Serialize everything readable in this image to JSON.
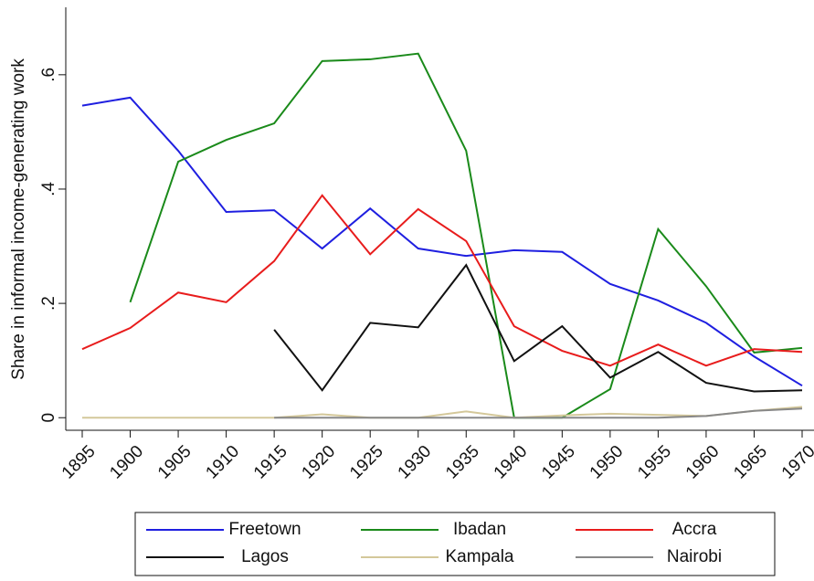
{
  "chart_data": {
    "type": "line",
    "y_label": "Share in informal income-generating work",
    "x": [
      1895,
      1900,
      1905,
      1910,
      1915,
      1920,
      1925,
      1930,
      1935,
      1940,
      1945,
      1950,
      1955,
      1960,
      1965,
      1970
    ],
    "xlim": [
      1895,
      1970
    ],
    "xticks": [
      1895,
      1900,
      1905,
      1910,
      1915,
      1920,
      1925,
      1930,
      1935,
      1940,
      1945,
      1950,
      1955,
      1960,
      1965,
      1970
    ],
    "ylim": [
      -0.022,
      0.718
    ],
    "yticks": [
      {
        "value": 0,
        "label": "0"
      },
      {
        "value": 0.2,
        "label": ".2"
      },
      {
        "value": 0.4,
        "label": ".4"
      },
      {
        "value": 0.6,
        "label": ".6"
      }
    ],
    "grid": false,
    "legend": "bottom",
    "series": [
      {
        "name": "Freetown",
        "color": "#1f1fe0",
        "values": [
          0.546,
          0.56,
          0.467,
          0.36,
          0.363,
          0.296,
          0.366,
          0.296,
          0.283,
          0.293,
          0.29,
          0.234,
          0.205,
          0.166,
          0.107,
          0.056
        ]
      },
      {
        "name": "Ibadan",
        "color": "#1a8a1a",
        "values": [
          null,
          0.202,
          0.448,
          0.486,
          0.515,
          0.624,
          0.627,
          0.637,
          0.467,
          0,
          0,
          0.05,
          0.33,
          0.23,
          0.114,
          0.122
        ]
      },
      {
        "name": "Accra",
        "color": "#e81c1c",
        "values": [
          0.12,
          0.157,
          0.219,
          0.202,
          0.274,
          0.389,
          0.286,
          0.365,
          0.309,
          0.16,
          0.117,
          0.091,
          0.128,
          0.091,
          0.12,
          0.115
        ]
      },
      {
        "name": "Lagos",
        "color": "#111111",
        "values": [
          null,
          null,
          null,
          null,
          0.154,
          0.048,
          0.166,
          0.158,
          0.267,
          0.099,
          0.16,
          0.07,
          0.115,
          0.061,
          0.046,
          0.048
        ]
      },
      {
        "name": "Kampala",
        "color": "#d4c89a",
        "values": [
          0,
          0,
          0,
          0,
          0,
          0.006,
          0,
          0,
          0.011,
          0,
          0.004,
          0.007,
          0.005,
          0.003,
          0.012,
          0.019
        ]
      },
      {
        "name": "Nairobi",
        "color": "#888888",
        "values": [
          null,
          null,
          null,
          null,
          0,
          0,
          0,
          0,
          0,
          0,
          0,
          0,
          0,
          0.003,
          0.012,
          0.016
        ]
      }
    ]
  }
}
